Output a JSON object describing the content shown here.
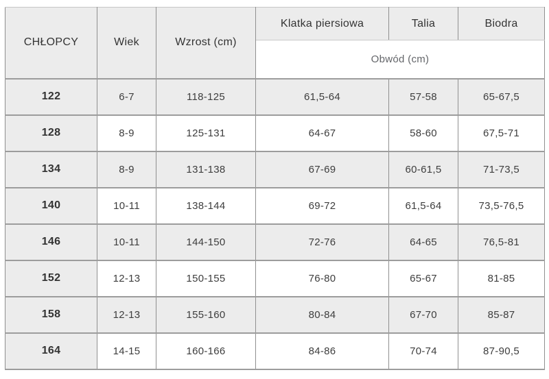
{
  "table": {
    "header": {
      "col_group": "CHŁOPCY",
      "col_age": "Wiek",
      "col_height": "Wzrost (cm)",
      "col_chest": "Klatka piersiowa",
      "col_waist": "Talia",
      "col_hips": "Biodra",
      "circumference_label": "Obwód (cm)"
    },
    "colors": {
      "cell_gray": "#ececec",
      "border_horizontal": "#9c9c9c",
      "border_vertical": "#8f8f8f",
      "text_dark": "#333333",
      "text_muted": "#636569"
    },
    "rows": [
      {
        "size": "122",
        "age": "6-7",
        "height": "118-125",
        "chest": "61,5-64",
        "waist": "57-58",
        "hips": "65-67,5"
      },
      {
        "size": "128",
        "age": "8-9",
        "height": "125-131",
        "chest": "64-67",
        "waist": "58-60",
        "hips": "67,5-71"
      },
      {
        "size": "134",
        "age": "8-9",
        "height": "131-138",
        "chest": "67-69",
        "waist": "60-61,5",
        "hips": "71-73,5"
      },
      {
        "size": "140",
        "age": "10-11",
        "height": "138-144",
        "chest": "69-72",
        "waist": "61,5-64",
        "hips": "73,5-76,5"
      },
      {
        "size": "146",
        "age": "10-11",
        "height": "144-150",
        "chest": "72-76",
        "waist": "64-65",
        "hips": "76,5-81"
      },
      {
        "size": "152",
        "age": "12-13",
        "height": "150-155",
        "chest": "76-80",
        "waist": "65-67",
        "hips": "81-85"
      },
      {
        "size": "158",
        "age": "12-13",
        "height": "155-160",
        "chest": "80-84",
        "waist": "67-70",
        "hips": "85-87"
      },
      {
        "size": "164",
        "age": "14-15",
        "height": "160-166",
        "chest": "84-86",
        "waist": "70-74",
        "hips": "87-90,5"
      }
    ]
  }
}
